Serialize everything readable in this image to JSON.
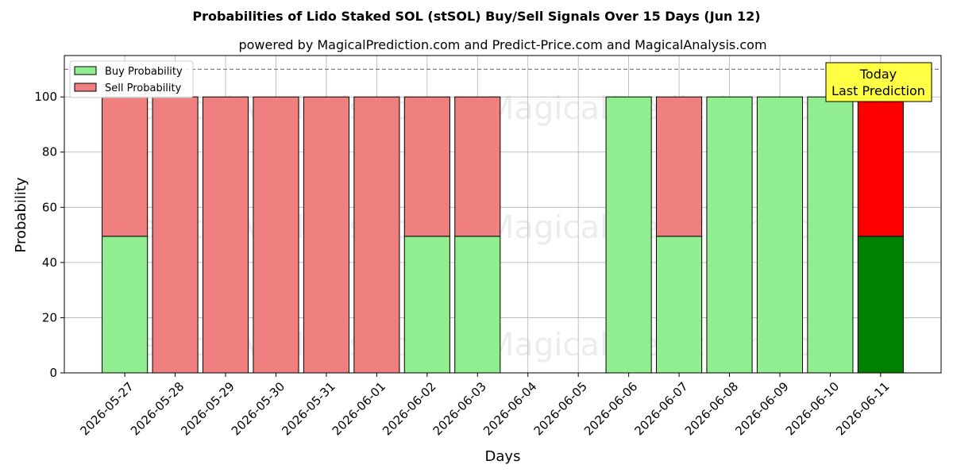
{
  "chart_data": {
    "type": "bar",
    "stacked": true,
    "title": "Probabilities of Lido Staked SOL (stSOL) Buy/Sell Signals Over 15 Days (Jun 12)",
    "subtitle": "powered by MagicalPrediction.com and Predict-Price.com and MagicalAnalysis.com",
    "xlabel": "Days",
    "ylabel": "Probability",
    "ylim": [
      0,
      115
    ],
    "yticks": [
      0,
      20,
      40,
      60,
      80,
      100
    ],
    "grid": true,
    "legend_position": "top-left",
    "categories": [
      "2026-05-27",
      "2026-05-28",
      "2026-05-29",
      "2026-05-30",
      "2026-05-31",
      "2026-06-01",
      "2026-06-02",
      "2026-06-03",
      "2026-06-04",
      "2026-06-05",
      "2026-06-06",
      "2026-06-07",
      "2026-06-08",
      "2026-06-09",
      "2026-06-10",
      "2026-06-11"
    ],
    "series": [
      {
        "name": "Buy Probability",
        "color": "#90ee90",
        "values": [
          49.5,
          0,
          0,
          0,
          0,
          0,
          49.5,
          49.5,
          0,
          0,
          100,
          49.5,
          100,
          100,
          100,
          49.5
        ]
      },
      {
        "name": "Sell Probability",
        "color": "#f08080",
        "values": [
          50.5,
          100,
          100,
          100,
          100,
          100,
          50.5,
          50.5,
          0,
          0,
          0,
          50.5,
          0,
          0,
          0,
          50.5
        ]
      }
    ],
    "highlight": {
      "index": 15,
      "buy_color": "#008000",
      "sell_color": "#ff0000"
    },
    "reference_line": {
      "y": 110,
      "style": "dashed"
    },
    "annotation": {
      "lines": [
        "Today",
        "Last Prediction"
      ],
      "background": "#ffff44"
    },
    "watermarks": [
      "MagicalAnalysis.com",
      "MagicalPrediction.com"
    ]
  }
}
